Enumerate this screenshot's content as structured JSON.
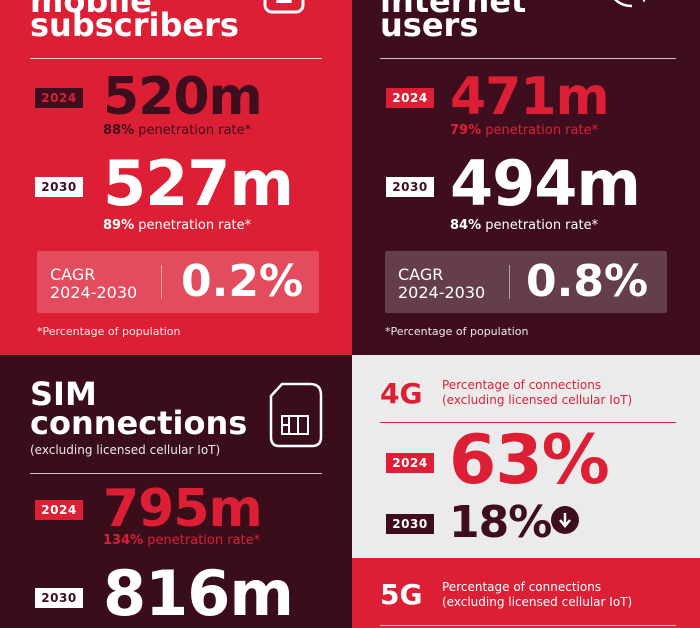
{
  "mobile": {
    "heading_line1": "mobile",
    "heading_line2": "subscribers",
    "year_2024": "2024",
    "value_2024": "520m",
    "pen_2024_pct": "88%",
    "pen_2024_text": " penetration rate*",
    "year_2030": "2030",
    "value_2030": "527m",
    "pen_2030_pct": "89%",
    "pen_2030_text": " penetration rate*",
    "cagr_line1": "CAGR",
    "cagr_line2": "2024-2030",
    "cagr_value": "0.2%",
    "footnote": "*Percentage of population"
  },
  "internet": {
    "heading_line1": "internet",
    "heading_line2": "users",
    "year_2024": "2024",
    "value_2024": "471m",
    "pen_2024_pct": "79%",
    "pen_2024_text": " penetration rate*",
    "year_2030": "2030",
    "value_2030": "494m",
    "pen_2030_pct": "84%",
    "pen_2030_text": " penetration rate*",
    "cagr_line1": "CAGR",
    "cagr_line2": "2024-2030",
    "cagr_value": "0.8%",
    "footnote": "*Percentage of population"
  },
  "sim": {
    "heading_line1": "SIM",
    "heading_line2": "connections",
    "subheading": "(excluding licensed cellular IoT)",
    "year_2024": "2024",
    "value_2024": "795m",
    "pen_2024_pct": "134%",
    "pen_2024_text": " penetration rate*",
    "year_2030": "2030",
    "value_2030": "816m",
    "icon": "sim-card-icon"
  },
  "g4": {
    "label": "4G",
    "desc_line1": "Percentage of connections",
    "desc_line2": "(excluding licensed cellular IoT)",
    "year_2024": "2024",
    "value_2024": "63%",
    "year_2030": "2030",
    "value_2030": "18%",
    "trend_icon": "arrow-down-circle-icon"
  },
  "g5": {
    "label": "5G",
    "desc_line1": "Percentage of connections",
    "desc_line2": "(excluding licensed cellular IoT)"
  },
  "colors": {
    "brand_red": "#dd1f36",
    "dark_maroon": "#3f0e1e",
    "light_grey": "#ebebeb"
  }
}
